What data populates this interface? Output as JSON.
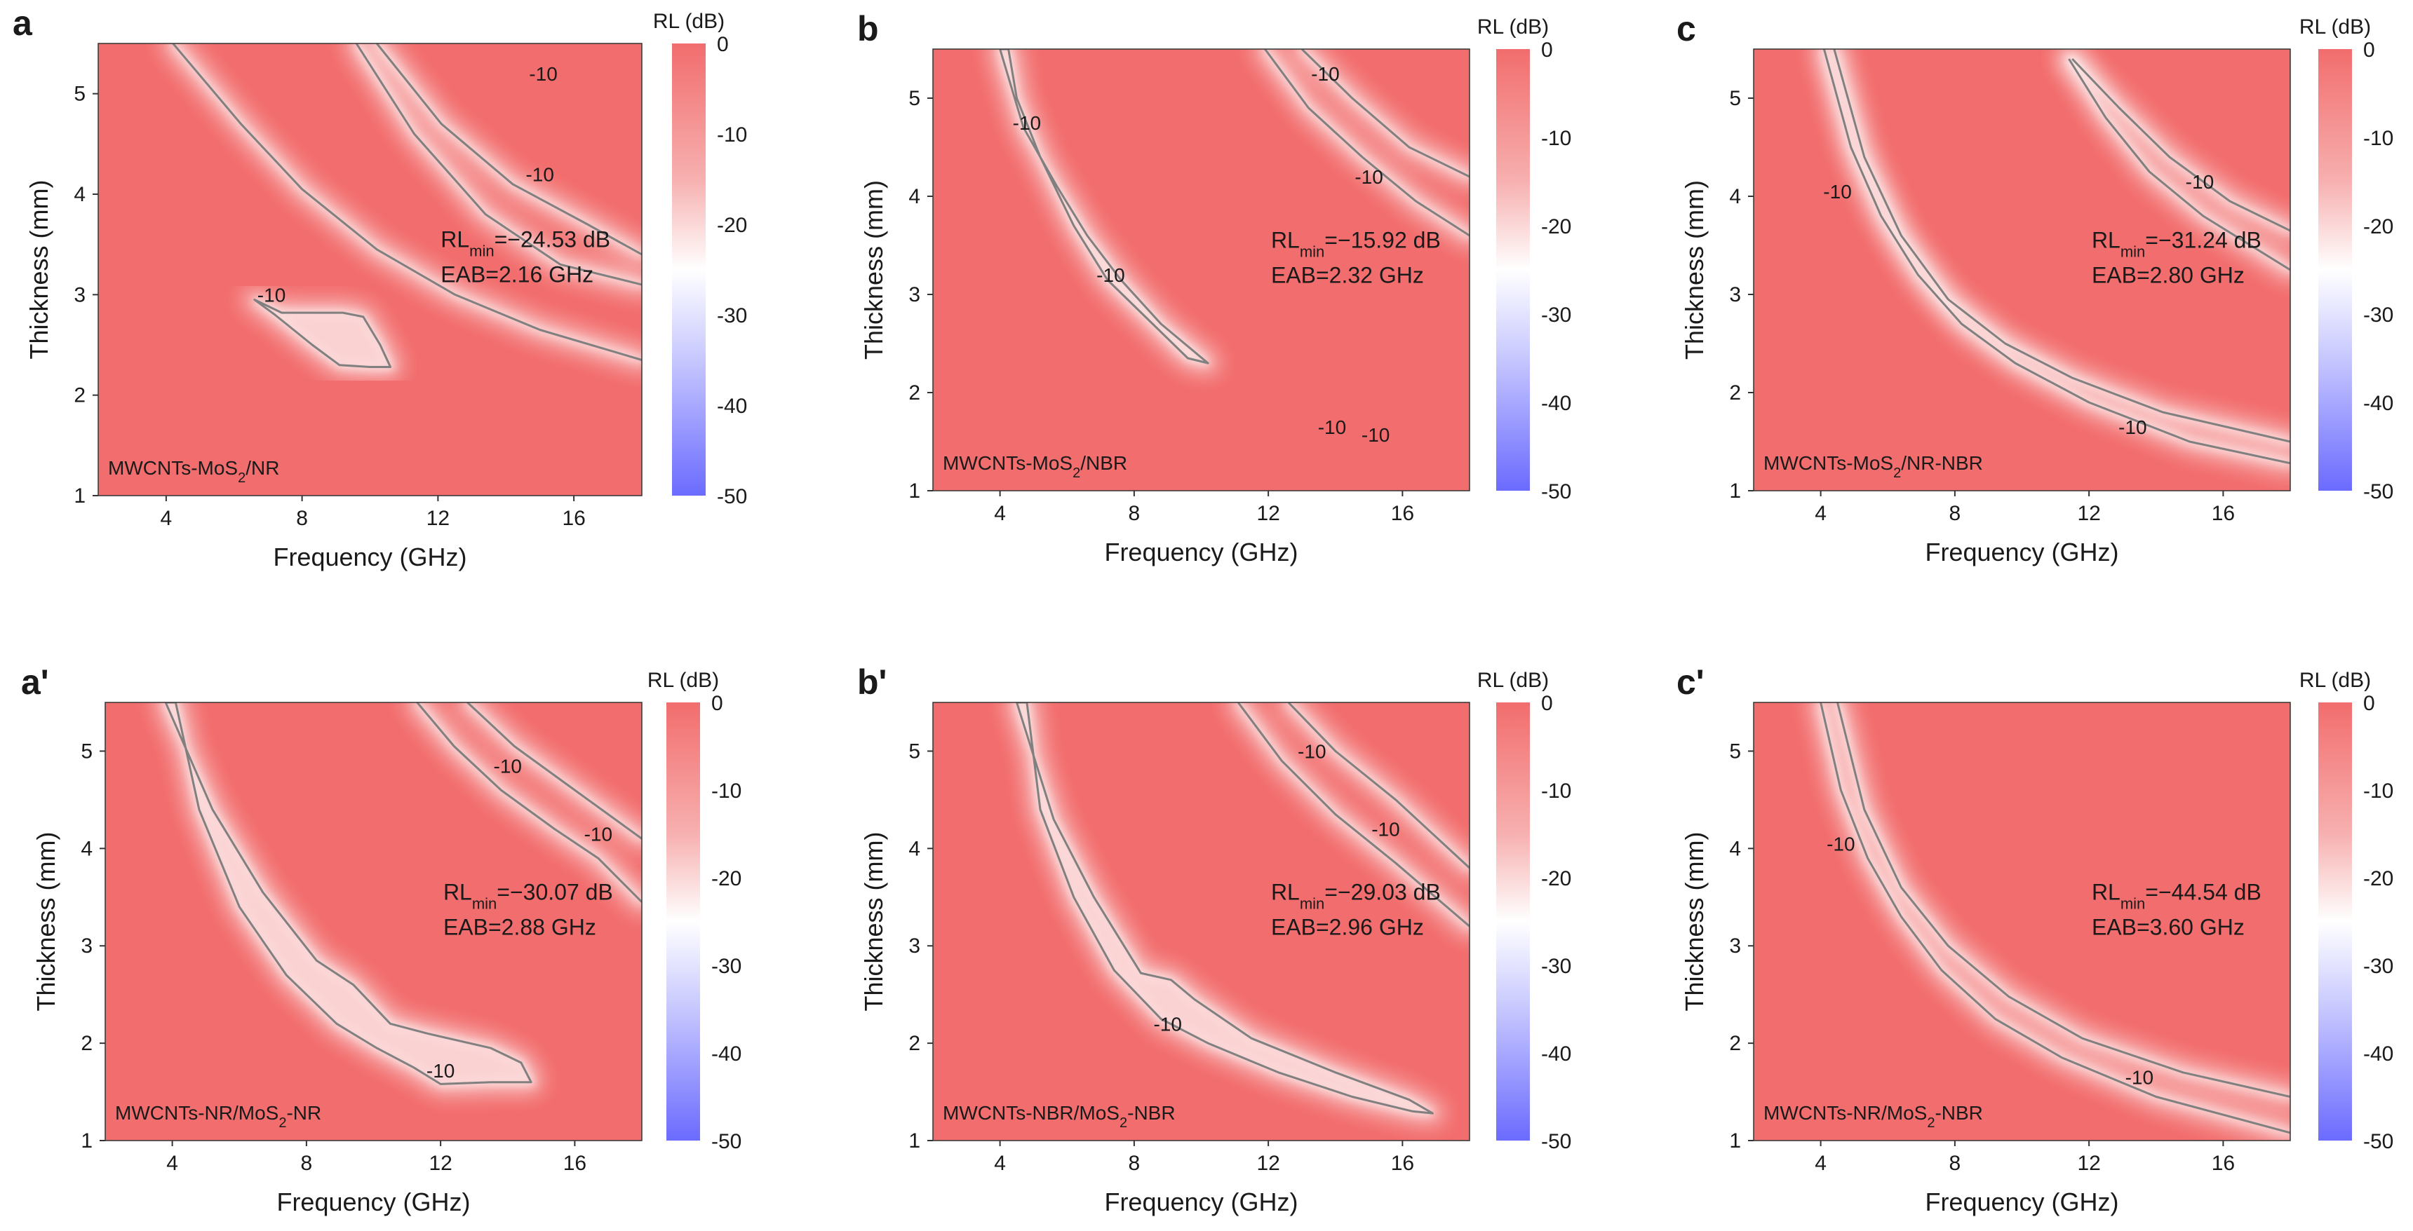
{
  "colorbar": {
    "title": "RL (dB)",
    "ticks": [
      "0",
      "-10",
      "-20",
      "-30",
      "-40",
      "-50"
    ],
    "range": [
      -50,
      0
    ],
    "colors": {
      "high": "#f26d6d",
      "mid": "#ffffff",
      "low": "#6b6bff"
    }
  },
  "contour_color": "#808080",
  "chart_data": [
    {
      "type": "heatmap",
      "panel": "a",
      "sample": "MWCNTs-MoS2/NR",
      "sample_parts": {
        "pre": "MWCNTs-MoS",
        "sub": "2",
        "post": "/NR"
      },
      "xlabel": "Frequency (GHz)",
      "ylabel": "Thickness (mm)",
      "xlim": [
        2,
        18
      ],
      "ylim": [
        1,
        5.5
      ],
      "xticks": [
        "4",
        "8",
        "12",
        "16"
      ],
      "yticks": [
        "1",
        "2",
        "3",
        "4",
        "5"
      ],
      "rl_min_value": "=−24.53 dB",
      "eab": "EAB=2.16 GHz",
      "contour_label": "-10",
      "contours": [
        {
          "points": [
            [
              9.6,
              5.5
            ],
            [
              11.3,
              4.6
            ],
            [
              13.4,
              3.8
            ],
            [
              15.6,
              3.3
            ],
            [
              18,
              3.1
            ]
          ],
          "closed": false
        },
        {
          "points": [
            [
              10.2,
              5.5
            ],
            [
              12.1,
              4.7
            ],
            [
              14.2,
              4.1
            ],
            [
              16.4,
              3.7
            ],
            [
              18,
              3.4
            ]
          ],
          "closed": false
        },
        {
          "points": [
            [
              4.2,
              5.5
            ],
            [
              6.2,
              4.7
            ],
            [
              8,
              4.05
            ],
            [
              10.2,
              3.45
            ],
            [
              12.5,
              3.0
            ],
            [
              15,
              2.65
            ],
            [
              18,
              2.35
            ]
          ],
          "closed": false
        },
        {
          "points": [
            [
              6.6,
              2.95
            ],
            [
              7.4,
              2.82
            ],
            [
              8.5,
              2.82
            ],
            [
              9.2,
              2.82
            ],
            [
              9.8,
              2.78
            ],
            [
              10.3,
              2.5
            ],
            [
              10.6,
              2.28
            ],
            [
              10,
              2.28
            ],
            [
              9.1,
              2.3
            ],
            [
              8.3,
              2.5
            ],
            [
              7.2,
              2.8
            ]
          ],
          "closed": true
        }
      ],
      "contour_labels": [
        {
          "x": 15.1,
          "y": 5.2
        },
        {
          "x": 15.0,
          "y": 4.2
        },
        {
          "x": 7.1,
          "y": 3.0
        }
      ]
    },
    {
      "type": "heatmap",
      "panel": "b",
      "sample": "MWCNTs-MoS2/NBR",
      "sample_parts": {
        "pre": "MWCNTs-MoS",
        "sub": "2",
        "post": "/NBR"
      },
      "xlabel": "Frequency (GHz)",
      "ylabel": "Thickness (mm)",
      "xlim": [
        2,
        18
      ],
      "ylim": [
        1,
        5.5
      ],
      "xticks": [
        "4",
        "8",
        "12",
        "16"
      ],
      "yticks": [
        "1",
        "2",
        "3",
        "4",
        "5"
      ],
      "rl_min_value": "=−15.92 dB",
      "eab": "EAB=2.32 GHz",
      "contour_label": "-10",
      "contours": [
        {
          "points": [
            [
              11.9,
              5.5
            ],
            [
              13.2,
              4.9
            ],
            [
              14.8,
              4.4
            ],
            [
              16.4,
              3.95
            ],
            [
              18,
              3.6
            ]
          ],
          "closed": false
        },
        {
          "points": [
            [
              13,
              5.5
            ],
            [
              14.5,
              5.0
            ],
            [
              16.2,
              4.5
            ],
            [
              18,
              4.2
            ]
          ],
          "closed": false
        },
        {
          "points": [
            [
              4,
              5.5
            ],
            [
              4.7,
              4.7
            ],
            [
              5.7,
              4.1
            ],
            [
              6.6,
              3.6
            ],
            [
              7.6,
              3.15
            ],
            [
              8.8,
              2.7
            ],
            [
              10.2,
              2.3
            ],
            [
              9.6,
              2.35
            ],
            [
              8.4,
              2.75
            ],
            [
              7.2,
              3.15
            ],
            [
              6.2,
              3.7
            ],
            [
              5.2,
              4.4
            ],
            [
              4.5,
              5.0
            ],
            [
              4.25,
              5.5
            ]
          ],
          "closed": true
        }
      ],
      "contour_labels": [
        {
          "x": 13.7,
          "y": 5.25
        },
        {
          "x": 15.0,
          "y": 4.2
        },
        {
          "x": 4.8,
          "y": 4.75
        },
        {
          "x": 7.3,
          "y": 3.2
        },
        {
          "x": 13.9,
          "y": 1.65
        },
        {
          "x": 15.2,
          "y": 1.57
        }
      ]
    },
    {
      "type": "heatmap",
      "panel": "c",
      "sample": "MWCNTs-MoS2/NR-NBR",
      "sample_parts": {
        "pre": "MWCNTs-MoS",
        "sub": "2",
        "post": "/NR-NBR"
      },
      "xlabel": "Frequency (GHz)",
      "ylabel": "Thickness (mm)",
      "xlim": [
        2,
        18
      ],
      "ylim": [
        1,
        5.5
      ],
      "xticks": [
        "4",
        "8",
        "12",
        "16"
      ],
      "yticks": [
        "1",
        "2",
        "3",
        "4",
        "5"
      ],
      "rl_min_value": "=−31.24 dB",
      "eab": "EAB=2.80 GHz",
      "contour_label": "-10",
      "contours": [
        {
          "points": [
            [
              4.1,
              5.5
            ],
            [
              4.9,
              4.5
            ],
            [
              5.8,
              3.8
            ],
            [
              6.9,
              3.2
            ],
            [
              8.2,
              2.7
            ],
            [
              9.8,
              2.3
            ],
            [
              12,
              1.9
            ],
            [
              15,
              1.5
            ],
            [
              18,
              1.28
            ]
          ],
          "closed": false
        },
        {
          "points": [
            [
              4.4,
              5.5
            ],
            [
              5.3,
              4.4
            ],
            [
              6.4,
              3.6
            ],
            [
              7.8,
              2.95
            ],
            [
              9.5,
              2.5
            ],
            [
              11.5,
              2.15
            ],
            [
              14.2,
              1.8
            ],
            [
              18,
              1.5
            ]
          ],
          "closed": false
        },
        {
          "points": [
            [
              11.4,
              5.4
            ],
            [
              12.5,
              4.8
            ],
            [
              13.8,
              4.25
            ],
            [
              15.4,
              3.8
            ],
            [
              18,
              3.25
            ]
          ],
          "closed": false
        },
        {
          "points": [
            [
              11.5,
              5.4
            ],
            [
              12.9,
              4.9
            ],
            [
              14.4,
              4.4
            ],
            [
              16.2,
              3.95
            ],
            [
              18,
              3.65
            ]
          ],
          "closed": false
        }
      ],
      "contour_labels": [
        {
          "x": 4.5,
          "y": 4.05
        },
        {
          "x": 15.3,
          "y": 4.15
        },
        {
          "x": 13.3,
          "y": 1.65
        }
      ]
    },
    {
      "type": "heatmap",
      "panel": "a'",
      "sample": "MWCNTs-NR/MoS2-NR",
      "sample_parts": {
        "pre": "MWCNTs-NR/MoS",
        "sub": "2",
        "post": "-NR"
      },
      "xlabel": "Frequency (GHz)",
      "ylabel": "Thickness (mm)",
      "xlim": [
        2,
        18
      ],
      "ylim": [
        1,
        5.5
      ],
      "xticks": [
        "4",
        "8",
        "12",
        "16"
      ],
      "yticks": [
        "1",
        "2",
        "3",
        "4",
        "5"
      ],
      "rl_min_value": "=−30.07 dB",
      "eab": "EAB=2.88 GHz",
      "contour_label": "-10",
      "contours": [
        {
          "points": [
            [
              3.8,
              5.5
            ],
            [
              5.2,
              4.4
            ],
            [
              6.7,
              3.55
            ],
            [
              8.3,
              2.85
            ],
            [
              9.4,
              2.6
            ],
            [
              10.5,
              2.2
            ],
            [
              11.6,
              2.1
            ],
            [
              13.5,
              1.95
            ],
            [
              14.4,
              1.8
            ],
            [
              14.7,
              1.6
            ],
            [
              13.5,
              1.6
            ],
            [
              12,
              1.58
            ],
            [
              11.2,
              1.75
            ],
            [
              10.1,
              1.95
            ],
            [
              8.9,
              2.2
            ],
            [
              7.4,
              2.7
            ],
            [
              6.0,
              3.4
            ],
            [
              4.8,
              4.4
            ],
            [
              4.1,
              5.5
            ]
          ],
          "closed": true
        },
        {
          "points": [
            [
              11.3,
              5.5
            ],
            [
              12.4,
              5.05
            ],
            [
              13.8,
              4.6
            ],
            [
              15.4,
              4.2
            ],
            [
              16.7,
              3.9
            ],
            [
              18,
              3.45
            ]
          ],
          "closed": false
        },
        {
          "points": [
            [
              12.8,
              5.5
            ],
            [
              14.2,
              5.05
            ],
            [
              15.8,
              4.65
            ],
            [
              18,
              4.1
            ]
          ],
          "closed": false
        }
      ],
      "contour_labels": [
        {
          "x": 14.0,
          "y": 4.85
        },
        {
          "x": 16.7,
          "y": 4.15
        },
        {
          "x": 12.0,
          "y": 1.72
        }
      ]
    },
    {
      "type": "heatmap",
      "panel": "b'",
      "sample": "MWCNTs-NBR/MoS2-NBR",
      "sample_parts": {
        "pre": "MWCNTs-NBR/MoS",
        "sub": "2",
        "post": "-NBR"
      },
      "xlabel": "Frequency (GHz)",
      "ylabel": "Thickness (mm)",
      "xlim": [
        2,
        18
      ],
      "ylim": [
        1,
        5.5
      ],
      "xticks": [
        "4",
        "8",
        "12",
        "16"
      ],
      "yticks": [
        "1",
        "2",
        "3",
        "4",
        "5"
      ],
      "rl_min_value": "=−29.03 dB",
      "eab": "EAB=2.96 GHz",
      "contour_label": "-10",
      "contours": [
        {
          "points": [
            [
              4.5,
              5.5
            ],
            [
              5.6,
              4.3
            ],
            [
              6.8,
              3.5
            ],
            [
              8.2,
              2.72
            ],
            [
              9.1,
              2.65
            ],
            [
              9.8,
              2.45
            ],
            [
              11.5,
              2.05
            ],
            [
              14,
              1.7
            ],
            [
              16.2,
              1.42
            ],
            [
              16.9,
              1.28
            ],
            [
              16.3,
              1.3
            ],
            [
              14.5,
              1.45
            ],
            [
              12.3,
              1.7
            ],
            [
              10.2,
              2.0
            ],
            [
              8.8,
              2.25
            ],
            [
              7.4,
              2.75
            ],
            [
              6.2,
              3.5
            ],
            [
              5.2,
              4.4
            ],
            [
              4.8,
              5.5
            ]
          ],
          "closed": true
        },
        {
          "points": [
            [
              11.1,
              5.5
            ],
            [
              12.4,
              4.9
            ],
            [
              14,
              4.35
            ],
            [
              15.8,
              3.85
            ],
            [
              18,
              3.2
            ]
          ],
          "closed": false
        },
        {
          "points": [
            [
              12.6,
              5.5
            ],
            [
              14,
              5.0
            ],
            [
              15.8,
              4.5
            ],
            [
              18,
              3.8
            ]
          ],
          "closed": false
        }
      ],
      "contour_labels": [
        {
          "x": 13.3,
          "y": 5.0
        },
        {
          "x": 15.5,
          "y": 4.2
        },
        {
          "x": 9.0,
          "y": 2.2
        }
      ]
    },
    {
      "type": "heatmap",
      "panel": "c'",
      "sample": "MWCNTs-NR/MoS2-NBR",
      "sample_parts": {
        "pre": "MWCNTs-NR/MoS",
        "sub": "2",
        "post": "-NBR"
      },
      "xlabel": "Frequency (GHz)",
      "ylabel": "Thickness (mm)",
      "xlim": [
        2,
        18
      ],
      "ylim": [
        1,
        5.5
      ],
      "xticks": [
        "4",
        "8",
        "12",
        "16"
      ],
      "yticks": [
        "1",
        "2",
        "3",
        "4",
        "5"
      ],
      "rl_min_value": "=−44.54 dB",
      "eab": "EAB=3.60 GHz",
      "contour_label": "-10",
      "contours": [
        {
          "points": [
            [
              4.0,
              5.5
            ],
            [
              4.6,
              4.6
            ],
            [
              5.4,
              3.9
            ],
            [
              6.4,
              3.3
            ],
            [
              7.6,
              2.75
            ],
            [
              9.2,
              2.25
            ],
            [
              11.2,
              1.85
            ],
            [
              14,
              1.45
            ],
            [
              18,
              1.08
            ]
          ],
          "closed": false
        },
        {
          "points": [
            [
              4.5,
              5.5
            ],
            [
              5.3,
              4.4
            ],
            [
              6.4,
              3.6
            ],
            [
              7.8,
              3.0
            ],
            [
              9.6,
              2.48
            ],
            [
              11.8,
              2.05
            ],
            [
              14.8,
              1.7
            ],
            [
              18,
              1.45
            ]
          ],
          "closed": false
        }
      ],
      "contour_labels": [
        {
          "x": 4.6,
          "y": 4.05
        },
        {
          "x": 13.5,
          "y": 1.65
        }
      ]
    }
  ]
}
